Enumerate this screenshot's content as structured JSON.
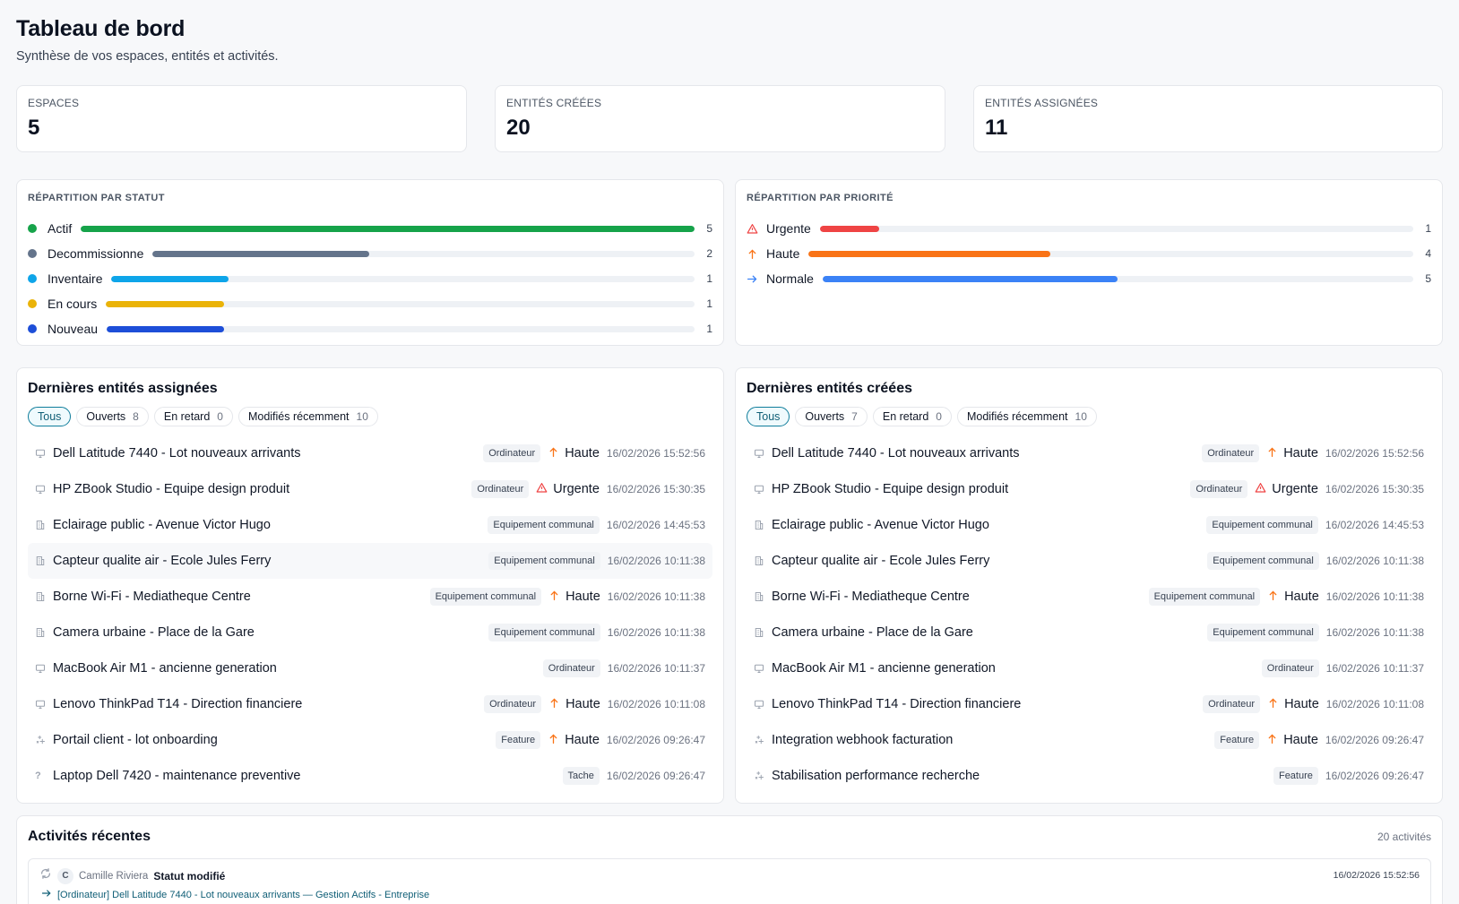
{
  "header": {
    "title": "Tableau de bord",
    "subtitle": "Synthèse de vos espaces, entités et activités."
  },
  "stats": [
    {
      "label": "ESPACES",
      "value": "5"
    },
    {
      "label": "ENTITÉS CRÉÉES",
      "value": "20"
    },
    {
      "label": "ENTITÉS ASSIGNÉES",
      "value": "11"
    }
  ],
  "status_distribution": {
    "title": "RÉPARTITION PAR STATUT",
    "max": 5,
    "items": [
      {
        "label": "Actif",
        "count": 5,
        "color": "#16a34a"
      },
      {
        "label": "Decommissionne",
        "count": 2,
        "color": "#64748b"
      },
      {
        "label": "Inventaire",
        "count": 1,
        "color": "#0ea5e9"
      },
      {
        "label": "En cours",
        "count": 1,
        "color": "#eab308"
      },
      {
        "label": "Nouveau",
        "count": 1,
        "color": "#1d4ed8"
      }
    ]
  },
  "priority_distribution": {
    "title": "RÉPARTITION PAR PRIORITÉ",
    "max": 10,
    "items": [
      {
        "label": "Urgente",
        "count": 1,
        "color": "#ef4444",
        "icon": "warning-triangle-icon"
      },
      {
        "label": "Haute",
        "count": 4,
        "color": "#f97316",
        "icon": "arrow-up-icon"
      },
      {
        "label": "Normale",
        "count": 5,
        "color": "#3b82f6",
        "icon": "arrow-right-icon"
      }
    ]
  },
  "assigned": {
    "title": "Dernières entités assignées",
    "filters": [
      {
        "label": "Tous",
        "count": ""
      },
      {
        "label": "Ouverts",
        "count": "8"
      },
      {
        "label": "En retard",
        "count": "0"
      },
      {
        "label": "Modifiés récemment",
        "count": "10"
      }
    ],
    "rows": [
      {
        "icon": "monitor-icon",
        "title": "Dell Latitude 7440 - Lot nouveaux arrivants",
        "type": "Ordinateur",
        "priority": "Haute",
        "date": "16/02/2026 15:52:56"
      },
      {
        "icon": "monitor-icon",
        "title": "HP ZBook Studio - Equipe design produit",
        "type": "Ordinateur",
        "priority": "Urgente",
        "date": "16/02/2026 15:30:35"
      },
      {
        "icon": "building-icon",
        "title": "Eclairage public - Avenue Victor Hugo",
        "type": "Equipement communal",
        "priority": "",
        "date": "16/02/2026 14:45:53"
      },
      {
        "icon": "building-icon",
        "title": "Capteur qualite air - Ecole Jules Ferry",
        "type": "Equipement communal",
        "priority": "",
        "date": "16/02/2026 10:11:38"
      },
      {
        "icon": "building-icon",
        "title": "Borne Wi-Fi - Mediatheque Centre",
        "type": "Equipement communal",
        "priority": "Haute",
        "date": "16/02/2026 10:11:38"
      },
      {
        "icon": "building-icon",
        "title": "Camera urbaine - Place de la Gare",
        "type": "Equipement communal",
        "priority": "",
        "date": "16/02/2026 10:11:38"
      },
      {
        "icon": "monitor-icon",
        "title": "MacBook Air M1 - ancienne generation",
        "type": "Ordinateur",
        "priority": "",
        "date": "16/02/2026 10:11:37"
      },
      {
        "icon": "monitor-icon",
        "title": "Lenovo ThinkPad T14 - Direction financiere",
        "type": "Ordinateur",
        "priority": "Haute",
        "date": "16/02/2026 10:11:08"
      },
      {
        "icon": "sparkle-icon",
        "title": "Portail client - lot onboarding",
        "type": "Feature",
        "priority": "Haute",
        "date": "16/02/2026 09:26:47"
      },
      {
        "icon": "question-icon",
        "title": "Laptop Dell 7420 - maintenance preventive",
        "type": "Tache",
        "priority": "",
        "date": "16/02/2026 09:26:47"
      }
    ]
  },
  "created": {
    "title": "Dernières entités créées",
    "filters": [
      {
        "label": "Tous",
        "count": ""
      },
      {
        "label": "Ouverts",
        "count": "7"
      },
      {
        "label": "En retard",
        "count": "0"
      },
      {
        "label": "Modifiés récemment",
        "count": "10"
      }
    ],
    "rows": [
      {
        "icon": "monitor-icon",
        "title": "Dell Latitude 7440 - Lot nouveaux arrivants",
        "type": "Ordinateur",
        "priority": "Haute",
        "date": "16/02/2026 15:52:56"
      },
      {
        "icon": "monitor-icon",
        "title": "HP ZBook Studio - Equipe design produit",
        "type": "Ordinateur",
        "priority": "Urgente",
        "date": "16/02/2026 15:30:35"
      },
      {
        "icon": "building-icon",
        "title": "Eclairage public - Avenue Victor Hugo",
        "type": "Equipement communal",
        "priority": "",
        "date": "16/02/2026 14:45:53"
      },
      {
        "icon": "building-icon",
        "title": "Capteur qualite air - Ecole Jules Ferry",
        "type": "Equipement communal",
        "priority": "",
        "date": "16/02/2026 10:11:38"
      },
      {
        "icon": "building-icon",
        "title": "Borne Wi-Fi - Mediatheque Centre",
        "type": "Equipement communal",
        "priority": "Haute",
        "date": "16/02/2026 10:11:38"
      },
      {
        "icon": "building-icon",
        "title": "Camera urbaine - Place de la Gare",
        "type": "Equipement communal",
        "priority": "",
        "date": "16/02/2026 10:11:38"
      },
      {
        "icon": "monitor-icon",
        "title": "MacBook Air M1 - ancienne generation",
        "type": "Ordinateur",
        "priority": "",
        "date": "16/02/2026 10:11:37"
      },
      {
        "icon": "monitor-icon",
        "title": "Lenovo ThinkPad T14 - Direction financiere",
        "type": "Ordinateur",
        "priority": "Haute",
        "date": "16/02/2026 10:11:08"
      },
      {
        "icon": "sparkle-icon",
        "title": "Integration webhook facturation",
        "type": "Feature",
        "priority": "Haute",
        "date": "16/02/2026 09:26:47"
      },
      {
        "icon": "sparkle-icon",
        "title": "Stabilisation performance recherche",
        "type": "Feature",
        "priority": "",
        "date": "16/02/2026 09:26:47"
      }
    ]
  },
  "activity": {
    "title": "Activités récentes",
    "count_label": "20 activités",
    "items": [
      {
        "avatar": "C",
        "user": "Camille Riviera",
        "action": "Statut modifié",
        "date": "16/02/2026 15:52:56",
        "link": "[Ordinateur] Dell Latitude 7440 - Lot nouveaux arrivants — Gestion Actifs - Entreprise"
      }
    ]
  }
}
